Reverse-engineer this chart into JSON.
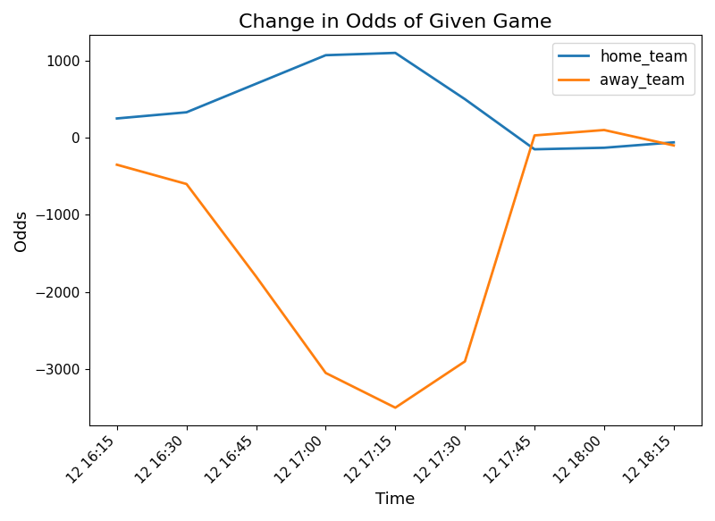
{
  "x_labels": [
    "12 16:15",
    "12 16:30",
    "12 16:45",
    "12 17:00",
    "12 17:15",
    "12 17:30",
    "12 17:45",
    "12 18:00",
    "12 18:15"
  ],
  "home_team": [
    250,
    330,
    700,
    1070,
    1100,
    500,
    -150,
    -130,
    -60
  ],
  "away_team": [
    -350,
    -600,
    -1800,
    -3050,
    -3500,
    -2900,
    30,
    100,
    -100
  ],
  "home_color": "#1f77b4",
  "away_color": "#ff7f0e",
  "title": "Change in Odds of Given Game",
  "xlabel": "Time",
  "ylabel": "Odds",
  "legend_labels": [
    "home_team",
    "away_team"
  ],
  "title_fontsize": 16,
  "label_fontsize": 13,
  "tick_fontsize": 11,
  "legend_fontsize": 12,
  "line_width": 2.0,
  "figsize": [
    8.0,
    5.83
  ],
  "dpi": 100
}
